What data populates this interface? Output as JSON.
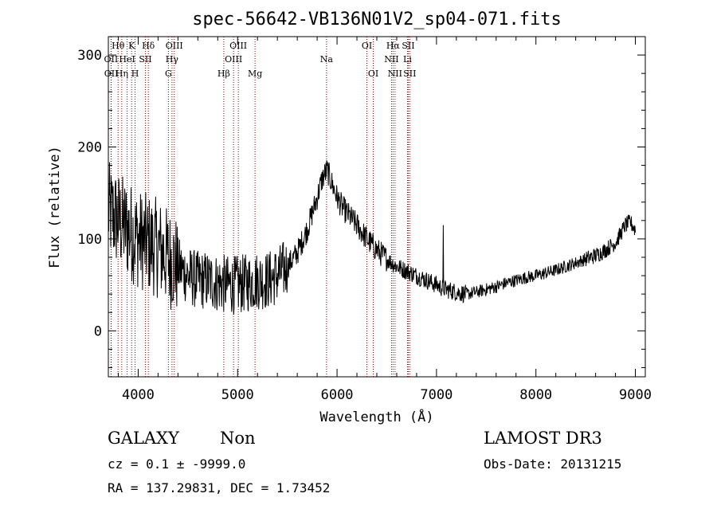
{
  "chart_data": {
    "type": "line",
    "title": "spec-56642-VB136N01V2_sp04-071.fits",
    "xlabel": "Wavelength (Å)",
    "ylabel": "Flux (relative)",
    "xlim": [
      3700,
      9100
    ],
    "ylim": [
      -50,
      320
    ],
    "xticks": [
      4000,
      5000,
      6000,
      7000,
      8000,
      9000
    ],
    "yticks": [
      0,
      100,
      200,
      300
    ],
    "line_color": "#000000",
    "marker_color": "#8b0000",
    "lines": [
      {
        "label": "OII",
        "x": 3727,
        "row": 2
      },
      {
        "label": "OII",
        "x": 3729,
        "row": 3
      },
      {
        "label": "Hθ",
        "x": 3798,
        "row": 1
      },
      {
        "label": "Hη",
        "x": 3835,
        "row": 3
      },
      {
        "label": "HeI",
        "x": 3889,
        "row": 2
      },
      {
        "label": "K",
        "x": 3934,
        "row": 1
      },
      {
        "label": "H",
        "x": 3969,
        "row": 3
      },
      {
        "label": "Hδ",
        "x": 4102,
        "row": 1
      },
      {
        "label": "SII",
        "x": 4072,
        "row": 2
      },
      {
        "label": "OIII",
        "x": 4363,
        "row": 1
      },
      {
        "label": "Hγ",
        "x": 4340,
        "row": 2
      },
      {
        "label": "G",
        "x": 4304,
        "row": 3
      },
      {
        "label": "Hβ",
        "x": 4861,
        "row": 3
      },
      {
        "label": "OIII",
        "x": 4959,
        "row": 2
      },
      {
        "label": "OIII",
        "x": 5007,
        "row": 1
      },
      {
        "label": "Mg",
        "x": 5175,
        "row": 3
      },
      {
        "label": "Na",
        "x": 5894,
        "row": 2
      },
      {
        "label": "OI",
        "x": 6300,
        "row": 1
      },
      {
        "label": "OI",
        "x": 6364,
        "row": 3
      },
      {
        "label": "NII",
        "x": 6548,
        "row": 2
      },
      {
        "label": "Hα",
        "x": 6563,
        "row": 1
      },
      {
        "label": "NII",
        "x": 6583,
        "row": 3
      },
      {
        "label": "SII",
        "x": 6716,
        "row": 1
      },
      {
        "label": "Li",
        "x": 6708,
        "row": 2
      },
      {
        "label": "SII",
        "x": 6731,
        "row": 3
      }
    ],
    "spectrum_anchors": {
      "x": [
        3700,
        3800,
        3900,
        4000,
        4100,
        4200,
        4300,
        4400,
        4500,
        4600,
        4700,
        4800,
        4900,
        5000,
        5100,
        5200,
        5300,
        5400,
        5500,
        5600,
        5700,
        5800,
        5850,
        5900,
        5950,
        6000,
        6050,
        6100,
        6200,
        6300,
        6400,
        6500,
        6600,
        6700,
        6800,
        6900,
        7000,
        7050,
        7100,
        7200,
        7300,
        7400,
        7500,
        7600,
        7700,
        7800,
        7900,
        8000,
        8100,
        8200,
        8300,
        8400,
        8500,
        8600,
        8700,
        8800,
        8850,
        8900,
        8950,
        9000
      ],
      "y": [
        130,
        120,
        110,
        100,
        95,
        90,
        80,
        70,
        60,
        55,
        55,
        52,
        50,
        50,
        52,
        55,
        55,
        60,
        70,
        85,
        110,
        145,
        165,
        175,
        160,
        145,
        135,
        128,
        115,
        100,
        88,
        78,
        70,
        65,
        60,
        55,
        50,
        47,
        45,
        42,
        40,
        42,
        45,
        48,
        52,
        55,
        58,
        60,
        63,
        66,
        70,
        74,
        78,
        82,
        88,
        96,
        105,
        115,
        118,
        110
      ]
    },
    "emission_spike": {
      "x": 7068,
      "y": 115
    }
  },
  "info": {
    "class": "GALAXY",
    "subclass": "Non",
    "survey": "LAMOST DR3",
    "cz": "cz = 0.1 ± -9999.0",
    "obs_date": "Obs-Date: 20131215",
    "radec": "RA = 137.29831, DEC =    1.73452"
  }
}
